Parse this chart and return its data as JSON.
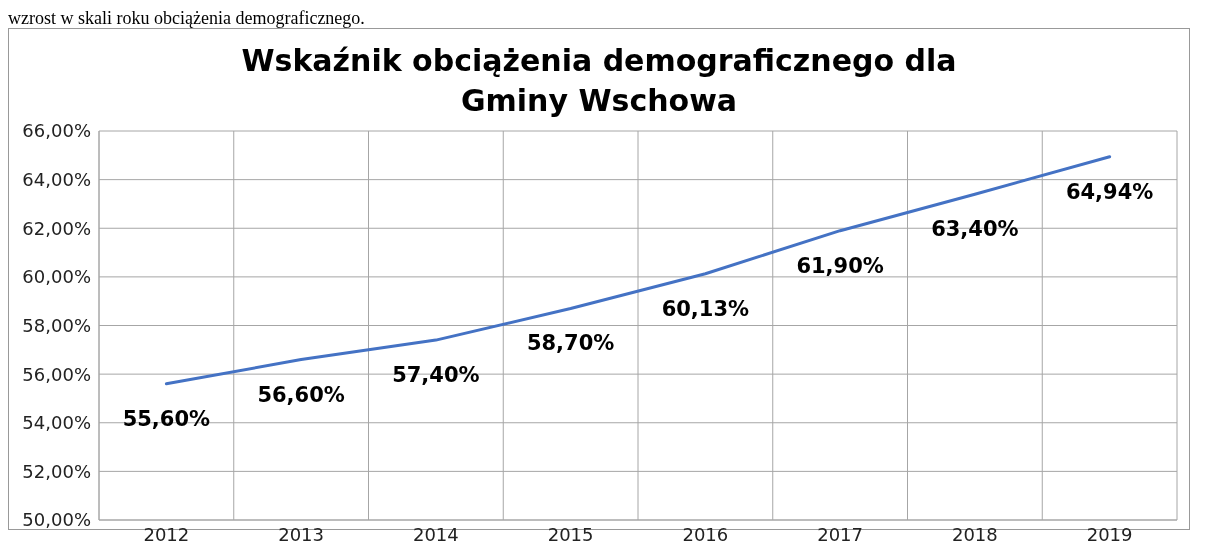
{
  "chart_data": {
    "type": "line",
    "title": "Wskaźnik obciążenia demograficznego dla Gminy Wschowa",
    "annotations": [
      "wzrost w skali roku obciążenia demograficznego."
    ],
    "categories": [
      "2012",
      "2013",
      "2014",
      "2015",
      "2016",
      "2017",
      "2018",
      "2019"
    ],
    "series": [
      {
        "color": "#4472c4",
        "values": [
          55.6,
          56.6,
          57.4,
          58.7,
          60.13,
          61.9,
          63.4,
          64.94
        ],
        "value_labels": [
          "55,60%",
          "56,60%",
          "57,40%",
          "58,70%",
          "60,13%",
          "61,90%",
          "63,40%",
          "64,94%"
        ]
      }
    ],
    "ylim": [
      50,
      66
    ],
    "yticks": [
      {
        "value": 50,
        "label": "50,00%"
      },
      {
        "value": 52,
        "label": "52,00%"
      },
      {
        "value": 54,
        "label": "54,00%"
      },
      {
        "value": 56,
        "label": "56,00%"
      },
      {
        "value": 58,
        "label": "58,00%"
      },
      {
        "value": 60,
        "label": "60,00%"
      },
      {
        "value": 62,
        "label": "62,00%"
      },
      {
        "value": 64,
        "label": "64,00%"
      },
      {
        "value": 66,
        "label": "66,00%"
      }
    ],
    "grid": true,
    "marker": "none",
    "line_style": "solid"
  }
}
